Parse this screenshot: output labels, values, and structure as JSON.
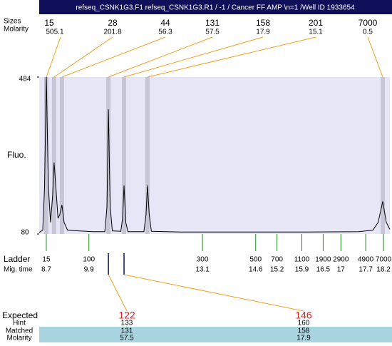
{
  "title_bar": "refseq_CSNK1G3.F1  refseq_CSNK1G3.R1 / -1 / Cancer FF AMP \\n=1 /Well ID 1933654",
  "chart_data": {
    "type": "line",
    "ylabel": "Fluo.",
    "ylim": [
      80,
      484
    ],
    "yticks": [
      80,
      484
    ],
    "xlim": [
      8.5,
      18.38
    ],
    "color": "#000000",
    "x": [
      8.5,
      8.6,
      8.65,
      8.7,
      8.76,
      8.82,
      8.88,
      8.92,
      8.97,
      9.03,
      9.08,
      9.14,
      9.2,
      9.3,
      9.6,
      10.0,
      10.35,
      10.41,
      10.45,
      10.5,
      10.56,
      10.8,
      10.85,
      10.89,
      10.94,
      11.0,
      11.45,
      11.51,
      11.55,
      11.6,
      11.66,
      12.5,
      14.0,
      16.0,
      17.5,
      17.9,
      18.05,
      18.18,
      18.28,
      18.38
    ],
    "values": [
      84,
      90,
      200,
      484,
      200,
      110,
      180,
      264,
      200,
      120,
      130,
      155,
      110,
      90,
      88,
      86,
      86,
      150,
      401,
      150,
      88,
      87,
      120,
      205,
      110,
      86,
      86,
      130,
      205,
      130,
      87,
      85,
      85,
      85,
      86,
      90,
      110,
      164,
      110,
      92
    ],
    "peaks": {
      "header": "Sizes",
      "molarity_header": "Molarity",
      "sizes": [
        15,
        28,
        44,
        131,
        158,
        201,
        7000
      ],
      "molarity": [
        505.1,
        201.8,
        56.3,
        57.5,
        17.9,
        15.1,
        0.5
      ],
      "x": [
        8.7,
        8.92,
        9.14,
        10.45,
        10.89,
        11.55,
        18.18
      ]
    },
    "ladder": {
      "label": "Ladder",
      "time_label": "Mig. time",
      "sizes": [
        15,
        100,
        300,
        500,
        700,
        1100,
        1900,
        2900,
        4900,
        7000
      ],
      "x": [
        8.7,
        9.9,
        13.1,
        14.6,
        15.2,
        15.9,
        16.5,
        17,
        17.7,
        18.2
      ]
    },
    "expected": {
      "x": [
        10.45,
        10.89
      ],
      "rows": [
        {
          "label": "Expected",
          "values": [
            122,
            146
          ]
        },
        {
          "label": "Hint",
          "values": [
            133,
            160
          ]
        },
        {
          "label": "Matched",
          "values": [
            131,
            158
          ]
        },
        {
          "label": "Molarity",
          "values": [
            57.5,
            17.9
          ]
        }
      ]
    }
  }
}
